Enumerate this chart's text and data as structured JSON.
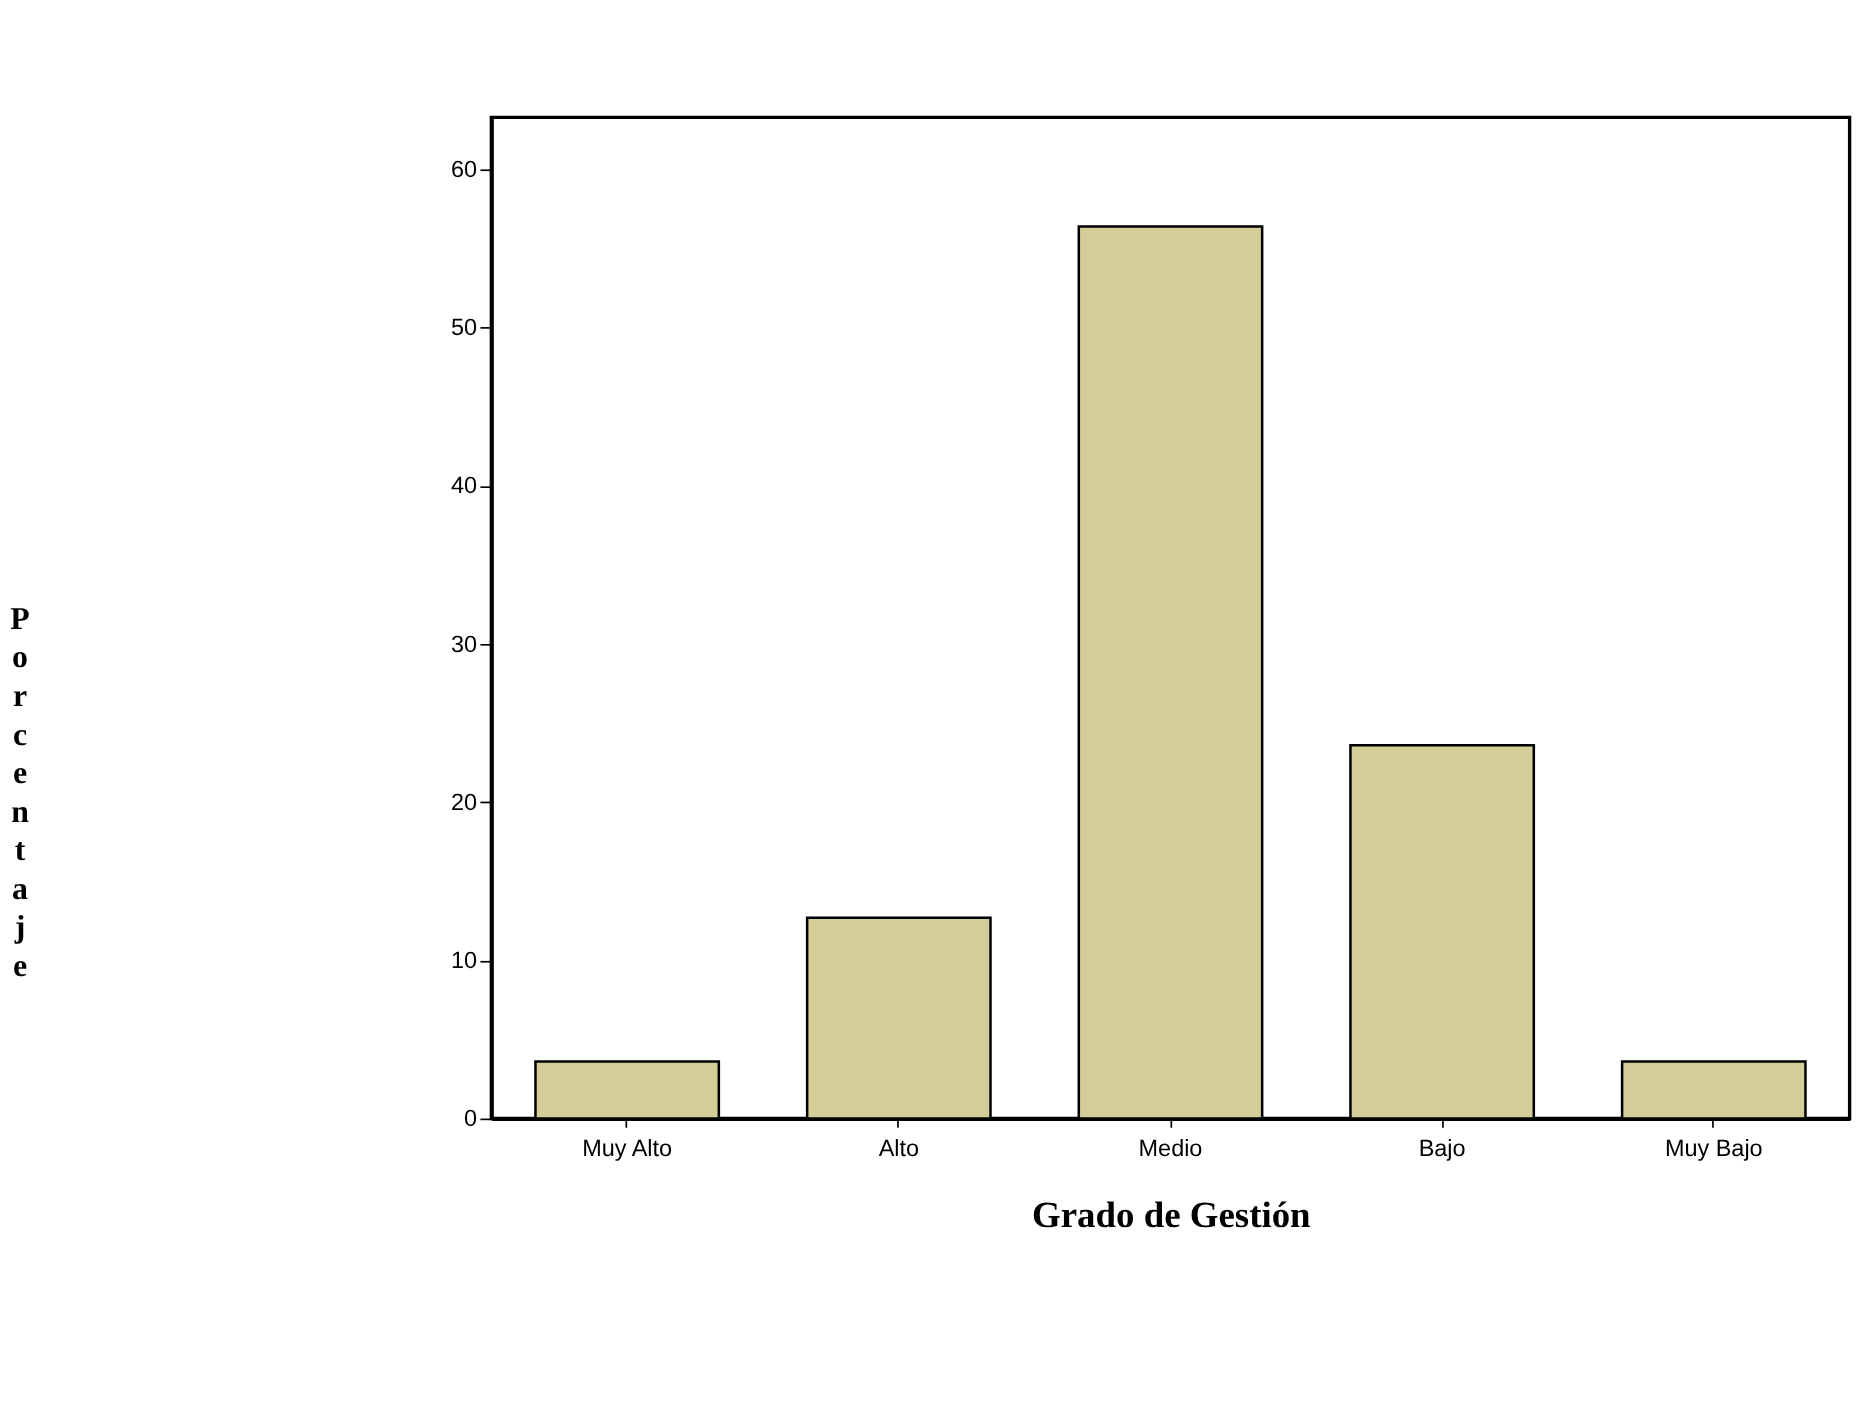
{
  "chart_data": {
    "type": "bar",
    "xlabel": "Grado de Gestión",
    "ylabel": "Porcentaje",
    "categories": [
      "Muy Alto",
      "Alto",
      "Medio",
      "Bajo",
      "Muy Bajo"
    ],
    "values": [
      3.6,
      12.7,
      56.4,
      23.6,
      3.6
    ],
    "color": "#d3cd97",
    "ylim": [
      0,
      63.3
    ],
    "yticks": [
      0,
      10,
      20,
      30,
      40,
      50,
      60
    ],
    "grid": false
  }
}
